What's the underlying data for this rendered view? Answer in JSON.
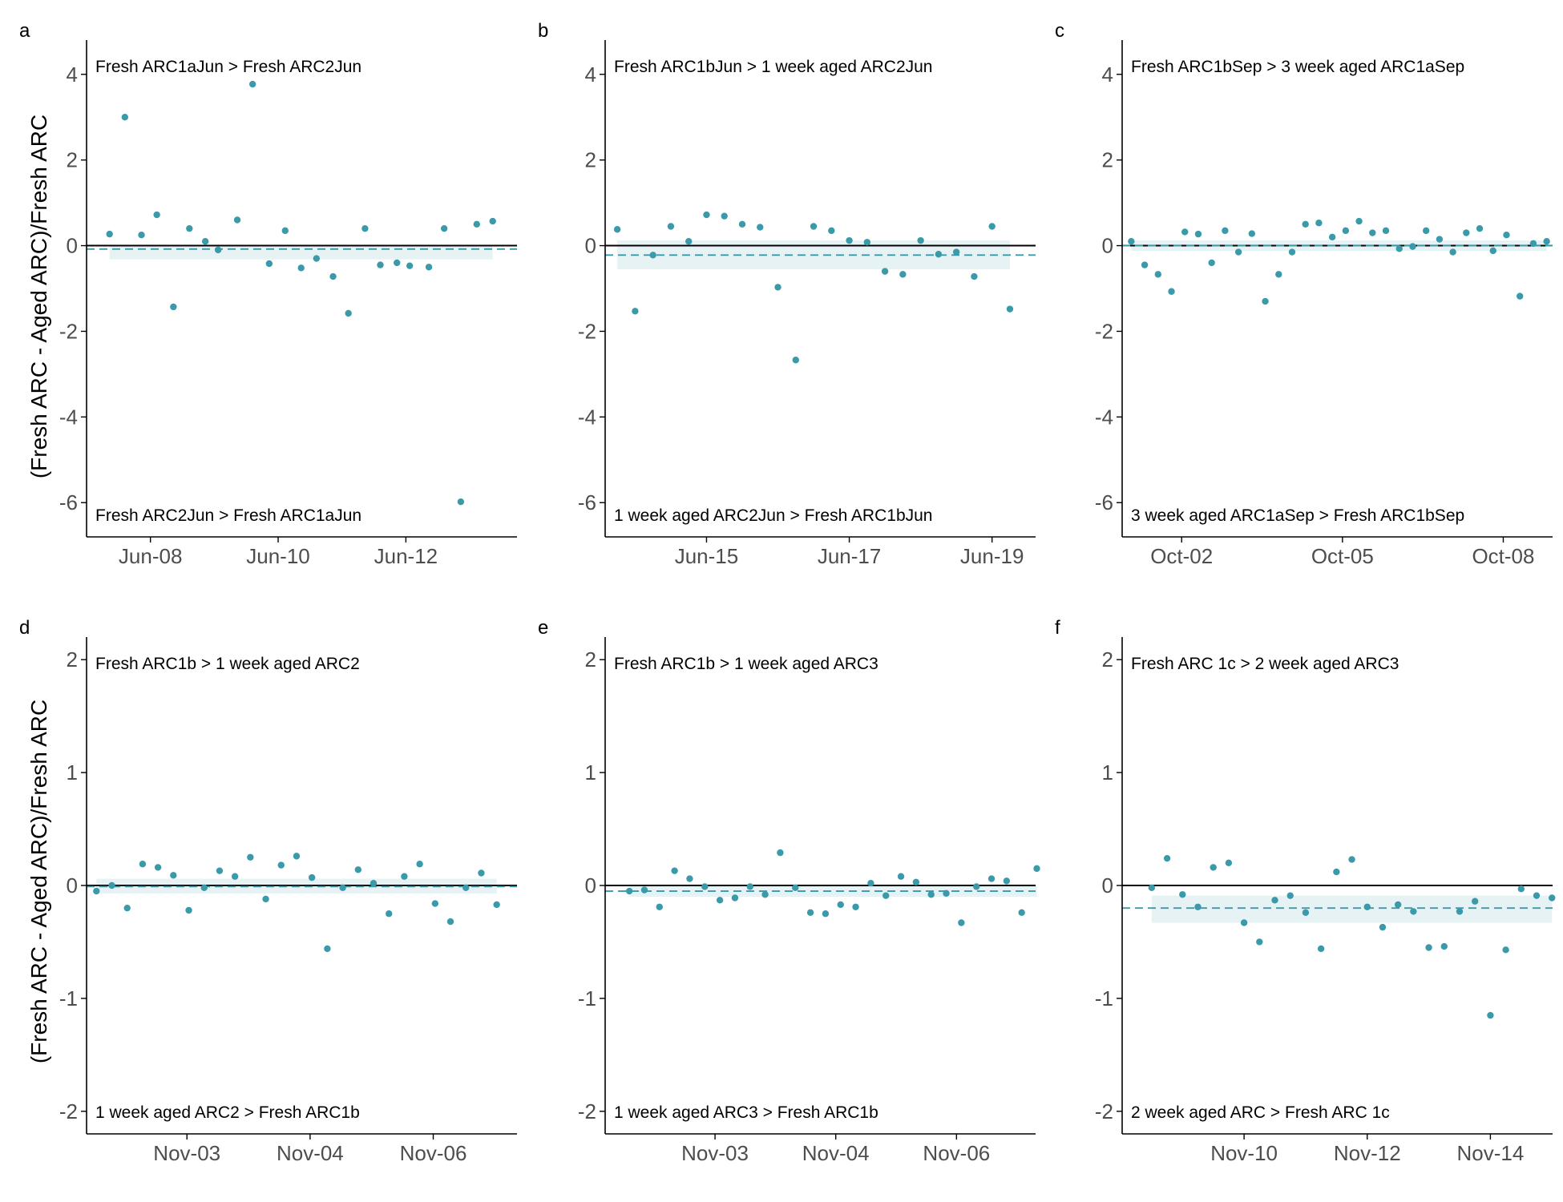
{
  "figure": {
    "ylabel": "(Fresh ARC - Aged ARC)/Fresh ARC",
    "colors": {
      "point": "#3a9aaa",
      "ribbon": "#e6f2f4",
      "mean_line": "#3a9aaa",
      "zero_line": "#000000",
      "axis": "#000000",
      "tick_text": "#4d4d4d"
    }
  },
  "chart_data": [
    {
      "id": "a",
      "type": "scatter",
      "letter": "a",
      "ylim": [
        -6.8,
        4.8
      ],
      "yticks": [
        4,
        2,
        0,
        -2,
        -4,
        -6
      ],
      "xlim": [
        0,
        6.74
      ],
      "xticks": [
        {
          "value": 1.0,
          "label": "Jun-08"
        },
        {
          "value": 3.0,
          "label": "Jun-10"
        },
        {
          "value": 5.0,
          "label": "Jun-12"
        }
      ],
      "annot_top": "Fresh ARC1aJun > Fresh ARC2Jun",
      "annot_bottom": "Fresh ARC2Jun > Fresh ARC1aJun",
      "mean": -0.08,
      "ribbon": [
        -0.32,
        0.02
      ],
      "points": [
        [
          0.36,
          0.27
        ],
        [
          0.6,
          3.0
        ],
        [
          0.86,
          0.25
        ],
        [
          1.1,
          0.72
        ],
        [
          1.36,
          -1.43
        ],
        [
          1.61,
          0.4
        ],
        [
          1.86,
          0.1
        ],
        [
          2.06,
          -0.1
        ],
        [
          2.36,
          0.6
        ],
        [
          2.6,
          3.77
        ],
        [
          2.86,
          -0.42
        ],
        [
          3.11,
          0.35
        ],
        [
          3.36,
          -0.52
        ],
        [
          3.6,
          -0.3
        ],
        [
          3.86,
          -0.72
        ],
        [
          4.1,
          -1.58
        ],
        [
          4.36,
          0.4
        ],
        [
          4.6,
          -0.45
        ],
        [
          4.86,
          -0.4
        ],
        [
          5.06,
          -0.47
        ],
        [
          5.36,
          -0.5
        ],
        [
          5.6,
          0.4
        ],
        [
          5.86,
          -5.98
        ],
        [
          6.11,
          0.5
        ],
        [
          6.36,
          0.57
        ]
      ]
    },
    {
      "id": "b",
      "type": "scatter",
      "letter": "b",
      "ylim": [
        -6.8,
        4.8
      ],
      "yticks": [
        4,
        2,
        0,
        -2,
        -4,
        -6
      ],
      "xlim": [
        0,
        6.03
      ],
      "xticks": [
        {
          "value": 1.42,
          "label": "Jun-15"
        },
        {
          "value": 3.42,
          "label": "Jun-17"
        },
        {
          "value": 5.42,
          "label": "Jun-19"
        }
      ],
      "annot_top": "Fresh ARC1bJun > 1 week aged ARC2Jun",
      "annot_bottom": "1 week aged ARC2Jun > Fresh ARC1bJun",
      "mean": -0.22,
      "ribbon": [
        -0.55,
        0.12
      ],
      "points": [
        [
          0.17,
          0.38
        ],
        [
          0.42,
          -1.53
        ],
        [
          0.67,
          -0.22
        ],
        [
          0.92,
          0.45
        ],
        [
          1.17,
          0.1
        ],
        [
          1.42,
          0.72
        ],
        [
          1.67,
          0.69
        ],
        [
          1.92,
          0.5
        ],
        [
          2.17,
          0.43
        ],
        [
          2.42,
          -0.97
        ],
        [
          2.67,
          -2.67
        ],
        [
          2.92,
          0.45
        ],
        [
          3.17,
          0.35
        ],
        [
          3.42,
          0.12
        ],
        [
          3.67,
          0.08
        ],
        [
          3.92,
          -0.6
        ],
        [
          4.17,
          -0.67
        ],
        [
          4.42,
          0.12
        ],
        [
          4.67,
          -0.2
        ],
        [
          4.92,
          -0.15
        ],
        [
          5.17,
          -0.72
        ],
        [
          5.42,
          0.45
        ],
        [
          5.67,
          -1.48
        ]
      ]
    },
    {
      "id": "c",
      "type": "scatter",
      "letter": "c",
      "ylim": [
        -6.8,
        4.8
      ],
      "yticks": [
        4,
        2,
        0,
        -2,
        -4,
        -6
      ],
      "xlim": [
        0,
        8.03
      ],
      "xticks": [
        {
          "value": 1.11,
          "label": "Oct-02"
        },
        {
          "value": 4.11,
          "label": "Oct-05"
        },
        {
          "value": 7.11,
          "label": "Oct-08"
        }
      ],
      "annot_top": "Fresh ARC1bSep > 3 week aged ARC1aSep",
      "annot_bottom": "3 week aged ARC1aSep > Fresh ARC1bSep",
      "mean": 0.0,
      "ribbon": [
        -0.12,
        0.12
      ],
      "points": [
        [
          0.17,
          0.1
        ],
        [
          0.42,
          -0.45
        ],
        [
          0.67,
          -0.67
        ],
        [
          0.92,
          -1.07
        ],
        [
          1.17,
          0.32
        ],
        [
          1.42,
          0.27
        ],
        [
          1.67,
          -0.4
        ],
        [
          1.92,
          0.35
        ],
        [
          2.17,
          -0.15
        ],
        [
          2.42,
          0.28
        ],
        [
          2.67,
          -1.3
        ],
        [
          2.92,
          -0.67
        ],
        [
          3.17,
          -0.15
        ],
        [
          3.42,
          0.5
        ],
        [
          3.67,
          0.53
        ],
        [
          3.92,
          0.2
        ],
        [
          4.17,
          0.35
        ],
        [
          4.42,
          0.57
        ],
        [
          4.67,
          0.3
        ],
        [
          4.92,
          0.35
        ],
        [
          5.17,
          -0.07
        ],
        [
          5.42,
          -0.02
        ],
        [
          5.67,
          0.35
        ],
        [
          5.92,
          0.15
        ],
        [
          6.17,
          -0.15
        ],
        [
          6.42,
          0.3
        ],
        [
          6.67,
          0.4
        ],
        [
          6.92,
          -0.12
        ],
        [
          7.17,
          0.25
        ],
        [
          7.42,
          -1.18
        ],
        [
          7.67,
          0.05
        ],
        [
          7.92,
          0.1
        ]
      ]
    },
    {
      "id": "d",
      "type": "scatter",
      "letter": "d",
      "ylim": [
        -2.2,
        2.2
      ],
      "yticks": [
        2,
        1,
        0,
        -1,
        -2
      ],
      "xlim": [
        0,
        6.99
      ],
      "xticks": [
        {
          "value": 1.63,
          "label": "Nov-03"
        },
        {
          "value": 3.63,
          "label": "Nov-04"
        },
        {
          "value": 5.63,
          "label": "Nov-06"
        }
      ],
      "annot_top": "Fresh ARC1b > 1 week aged ARC2",
      "annot_bottom": "1 week aged ARC2 > Fresh ARC1b",
      "mean": -0.01,
      "ribbon": [
        -0.07,
        0.06
      ],
      "points": [
        [
          0.16,
          -0.05
        ],
        [
          0.41,
          0.0
        ],
        [
          0.66,
          -0.2
        ],
        [
          0.91,
          0.19
        ],
        [
          1.16,
          0.16
        ],
        [
          1.41,
          0.09
        ],
        [
          1.66,
          -0.22
        ],
        [
          1.91,
          -0.02
        ],
        [
          2.16,
          0.13
        ],
        [
          2.41,
          0.08
        ],
        [
          2.66,
          0.25
        ],
        [
          2.91,
          -0.12
        ],
        [
          3.16,
          0.18
        ],
        [
          3.41,
          0.26
        ],
        [
          3.66,
          0.07
        ],
        [
          3.91,
          -0.56
        ],
        [
          4.16,
          -0.02
        ],
        [
          4.41,
          0.14
        ],
        [
          4.66,
          0.02
        ],
        [
          4.91,
          -0.25
        ],
        [
          5.16,
          0.08
        ],
        [
          5.41,
          0.19
        ],
        [
          5.66,
          -0.16
        ],
        [
          5.91,
          -0.32
        ],
        [
          6.16,
          -0.02
        ],
        [
          6.41,
          0.11
        ],
        [
          6.66,
          -0.17
        ]
      ]
    },
    {
      "id": "e",
      "type": "scatter",
      "letter": "e",
      "ylim": [
        -2.2,
        2.2
      ],
      "yticks": [
        2,
        1,
        0,
        -1,
        -2
      ],
      "xlim": [
        0,
        7.13
      ],
      "xticks": [
        {
          "value": 1.82,
          "label": "Nov-03"
        },
        {
          "value": 3.82,
          "label": "Nov-04"
        },
        {
          "value": 5.82,
          "label": "Nov-06"
        }
      ],
      "annot_top": "Fresh ARC1b > 1 week aged ARC3",
      "annot_bottom": "1 week aged ARC3 > Fresh ARC1b",
      "mean": -0.05,
      "ribbon": [
        -0.1,
        0.01
      ],
      "points": [
        [
          0.4,
          -0.05
        ],
        [
          0.65,
          -0.04
        ],
        [
          0.9,
          -0.19
        ],
        [
          1.15,
          0.13
        ],
        [
          1.4,
          0.06
        ],
        [
          1.65,
          -0.01
        ],
        [
          1.9,
          -0.13
        ],
        [
          2.15,
          -0.11
        ],
        [
          2.4,
          -0.01
        ],
        [
          2.65,
          -0.08
        ],
        [
          2.9,
          0.29
        ],
        [
          3.15,
          -0.02
        ],
        [
          3.4,
          -0.24
        ],
        [
          3.65,
          -0.25
        ],
        [
          3.9,
          -0.17
        ],
        [
          4.15,
          -0.19
        ],
        [
          4.4,
          0.02
        ],
        [
          4.65,
          -0.09
        ],
        [
          4.9,
          0.08
        ],
        [
          5.15,
          0.03
        ],
        [
          5.4,
          -0.08
        ],
        [
          5.65,
          -0.07
        ],
        [
          5.9,
          -0.33
        ],
        [
          6.15,
          -0.01
        ],
        [
          6.4,
          0.06
        ],
        [
          6.65,
          0.04
        ],
        [
          6.9,
          -0.24
        ],
        [
          7.15,
          0.15
        ]
      ]
    },
    {
      "id": "f",
      "type": "scatter",
      "letter": "f",
      "ylim": [
        -2.2,
        2.2
      ],
      "yticks": [
        2,
        1,
        0,
        -1,
        -2
      ],
      "xlim": [
        0,
        6.99
      ],
      "xticks": [
        {
          "value": 1.98,
          "label": "Nov-10"
        },
        {
          "value": 3.98,
          "label": "Nov-12"
        },
        {
          "value": 5.98,
          "label": "Nov-14"
        }
      ],
      "annot_top": "Fresh ARC 1c > 2 week aged ARC3",
      "annot_bottom": "2 week aged ARC > Fresh ARC 1c",
      "mean": -0.2,
      "ribbon": [
        -0.33,
        -0.09
      ],
      "points": [
        [
          0.48,
          -0.02
        ],
        [
          0.73,
          0.24
        ],
        [
          0.98,
          -0.08
        ],
        [
          1.23,
          -0.19
        ],
        [
          1.48,
          0.16
        ],
        [
          1.73,
          0.2
        ],
        [
          1.98,
          -0.33
        ],
        [
          2.23,
          -0.5
        ],
        [
          2.48,
          -0.13
        ],
        [
          2.73,
          -0.09
        ],
        [
          2.98,
          -0.24
        ],
        [
          3.23,
          -0.56
        ],
        [
          3.48,
          0.12
        ],
        [
          3.73,
          0.23
        ],
        [
          3.98,
          -0.19
        ],
        [
          4.23,
          -0.37
        ],
        [
          4.48,
          -0.17
        ],
        [
          4.73,
          -0.23
        ],
        [
          4.98,
          -0.55
        ],
        [
          5.23,
          -0.54
        ],
        [
          5.48,
          -0.23
        ],
        [
          5.73,
          -0.14
        ],
        [
          5.98,
          -1.15
        ],
        [
          6.23,
          -0.57
        ],
        [
          6.48,
          -0.03
        ],
        [
          6.73,
          -0.09
        ],
        [
          6.98,
          -0.11
        ]
      ]
    }
  ]
}
